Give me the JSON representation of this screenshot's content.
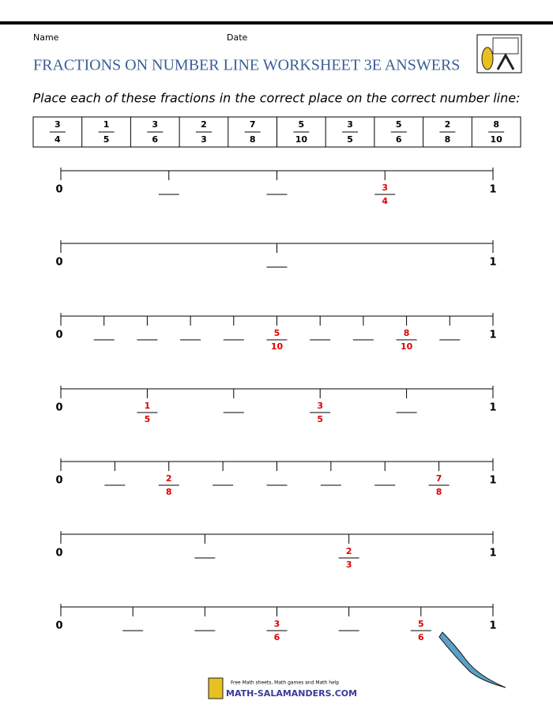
{
  "header": {
    "name_label": "Name",
    "date_label": "Date",
    "title": "FRACTIONS ON NUMBER LINE WORKSHEET 3E ANSWERS",
    "instructions": "Place each of these fractions in the correct place on the correct number line:"
  },
  "fractions": [
    {
      "numerator": 3,
      "denominator": 4
    },
    {
      "numerator": 1,
      "denominator": 5
    },
    {
      "numerator": 3,
      "denominator": 6
    },
    {
      "numerator": 2,
      "denominator": 3
    },
    {
      "numerator": 7,
      "denominator": 8
    },
    {
      "numerator": 5,
      "denominator": 10
    },
    {
      "numerator": 3,
      "denominator": 5
    },
    {
      "numerator": 5,
      "denominator": 6
    },
    {
      "numerator": 2,
      "denominator": 8
    },
    {
      "numerator": 8,
      "denominator": 10
    }
  ],
  "number_lines": [
    {
      "start": "0",
      "end": "1",
      "divisions": 4,
      "answers": [
        {
          "position": 3,
          "numerator": 3,
          "denominator": 4
        }
      ]
    },
    {
      "start": "0",
      "end": "1",
      "divisions": 2,
      "answers": []
    },
    {
      "start": "0",
      "end": "1",
      "divisions": 10,
      "answers": [
        {
          "position": 5,
          "numerator": 5,
          "denominator": 10
        },
        {
          "position": 8,
          "numerator": 8,
          "denominator": 10
        }
      ]
    },
    {
      "start": "0",
      "end": "1",
      "divisions": 5,
      "answers": [
        {
          "position": 1,
          "numerator": 1,
          "denominator": 5
        },
        {
          "position": 3,
          "numerator": 3,
          "denominator": 5
        }
      ]
    },
    {
      "start": "0",
      "end": "1",
      "divisions": 8,
      "answers": [
        {
          "position": 2,
          "numerator": 2,
          "denominator": 8
        },
        {
          "position": 7,
          "numerator": 7,
          "denominator": 8
        }
      ]
    },
    {
      "start": "0",
      "end": "1",
      "divisions": 3,
      "answers": [
        {
          "position": 2,
          "numerator": 2,
          "denominator": 3
        }
      ]
    },
    {
      "start": "0",
      "end": "1",
      "divisions": 6,
      "answers": [
        {
          "position": 3,
          "numerator": 3,
          "denominator": 6
        },
        {
          "position": 5,
          "numerator": 5,
          "denominator": 6
        }
      ]
    }
  ],
  "footer": {
    "tagline": "Free Math sheets, Math games and Math help",
    "site": "MATH-SALAMANDERS.COM"
  }
}
